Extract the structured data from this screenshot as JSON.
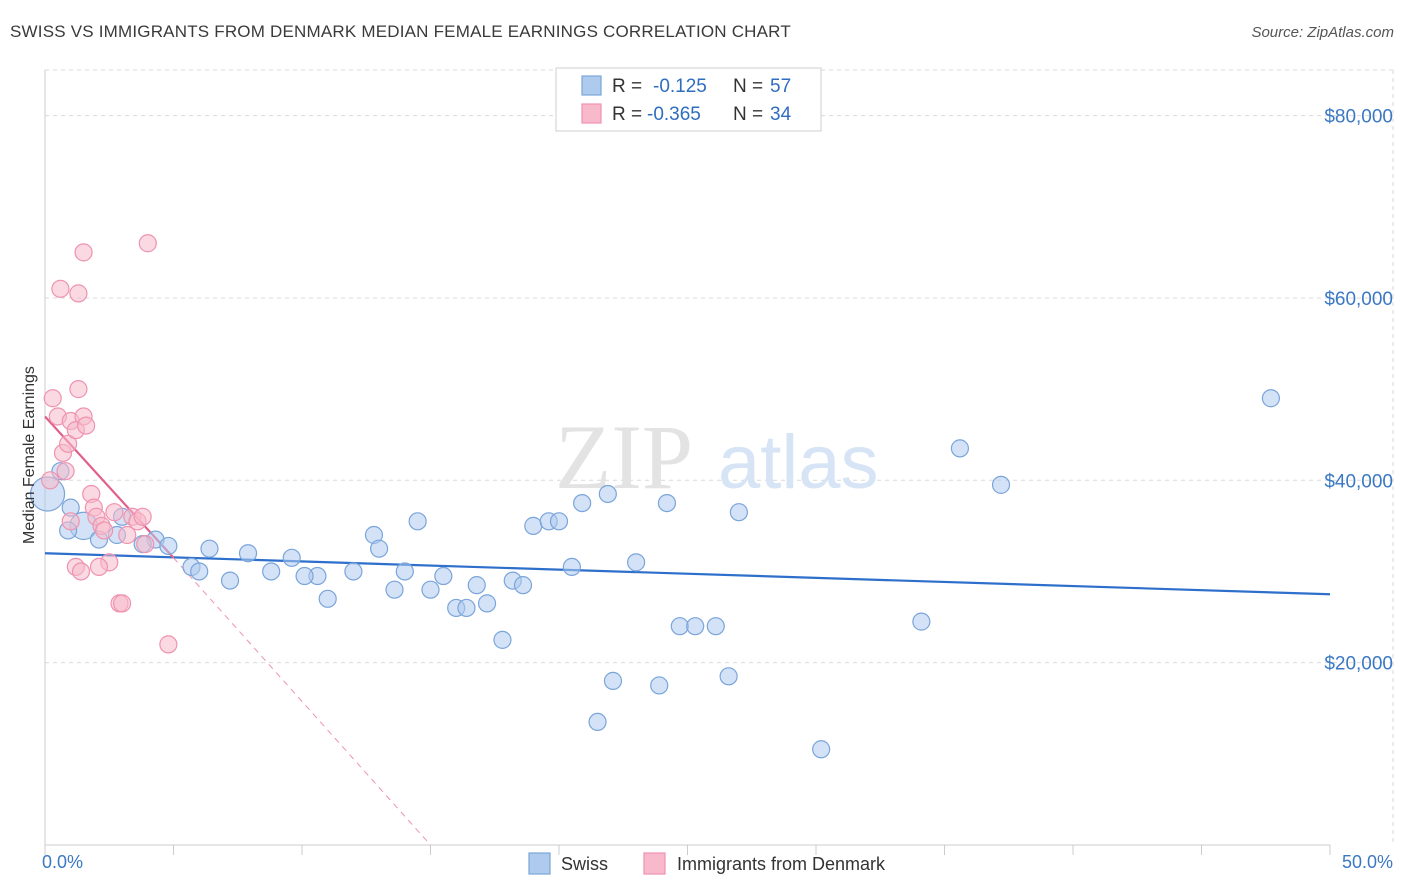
{
  "title": "SWISS VS IMMIGRANTS FROM DENMARK MEDIAN FEMALE EARNINGS CORRELATION CHART",
  "source": "Source: ZipAtlas.com",
  "watermark": {
    "zip": "ZIP",
    "atlas": "atlas"
  },
  "colors": {
    "swiss_fill": "#aecbee",
    "swiss_stroke": "#7aa5da",
    "swiss_line": "#2e6fcc",
    "denmark_fill": "#f7b9cb",
    "denmark_stroke": "#ee93b0",
    "denmark_line": "#e0608c",
    "grid": "#d9d9d9",
    "axis_label": "#3b78c4"
  },
  "legend": {
    "rows": [
      {
        "r_label": "R =",
        "r_value": "-0.125",
        "n_label": "N =",
        "n_value": "57"
      },
      {
        "r_label": "R =",
        "r_value": "-0.365",
        "n_label": "N =",
        "n_value": "34"
      }
    ]
  },
  "chart_data": {
    "type": "scatter",
    "ylabel": "Median Female Earnings",
    "xlim": [
      0,
      50
    ],
    "ylim": [
      0,
      85000
    ],
    "x_tick_labels": [
      "0.0%",
      "50.0%"
    ],
    "y_ticks": [
      {
        "value": 20000,
        "label": "$20,000"
      },
      {
        "value": 40000,
        "label": "$40,000"
      },
      {
        "value": 60000,
        "label": "$60,000"
      },
      {
        "value": 80000,
        "label": "$80,000"
      }
    ],
    "series": [
      {
        "name": "Swiss",
        "r": -0.125,
        "n": 57,
        "trend": {
          "x0": 0,
          "y0": 32000,
          "x1": 50,
          "y1": 27500
        },
        "points": [
          [
            0.1,
            38500,
            1.0
          ],
          [
            1.5,
            35000,
            0.8
          ],
          [
            0.6,
            41000,
            0.5
          ],
          [
            1.0,
            37000,
            0.5
          ],
          [
            2.8,
            34000,
            0.5
          ],
          [
            3.0,
            36000,
            0.5
          ],
          [
            4.3,
            33500,
            0.5
          ],
          [
            4.8,
            32800,
            0.5
          ],
          [
            5.7,
            30500,
            0.5
          ],
          [
            6.4,
            32500,
            0.5
          ],
          [
            6.0,
            30000,
            0.5
          ],
          [
            7.2,
            29000,
            0.5
          ],
          [
            7.9,
            32000,
            0.5
          ],
          [
            8.8,
            30000,
            0.5
          ],
          [
            9.6,
            31500,
            0.5
          ],
          [
            10.6,
            29500,
            0.5
          ],
          [
            10.1,
            29500,
            0.5
          ],
          [
            11.0,
            27000,
            0.5
          ],
          [
            12.0,
            30000,
            0.5
          ],
          [
            12.8,
            34000,
            0.5
          ],
          [
            13.0,
            32500,
            0.5
          ],
          [
            13.6,
            28000,
            0.5
          ],
          [
            14.0,
            30000,
            0.5
          ],
          [
            14.5,
            35500,
            0.5
          ],
          [
            15.0,
            28000,
            0.5
          ],
          [
            15.5,
            29500,
            0.5
          ],
          [
            16.0,
            26000,
            0.5
          ],
          [
            16.4,
            26000,
            0.5
          ],
          [
            16.8,
            28500,
            0.5
          ],
          [
            17.2,
            26500,
            0.5
          ],
          [
            17.8,
            22500,
            0.5
          ],
          [
            18.2,
            29000,
            0.5
          ],
          [
            18.6,
            28500,
            0.5
          ],
          [
            19.0,
            35000,
            0.5
          ],
          [
            19.6,
            35500,
            0.5
          ],
          [
            20.0,
            35500,
            0.5
          ],
          [
            20.5,
            30500,
            0.5
          ],
          [
            20.9,
            37500,
            0.5
          ],
          [
            21.5,
            13500,
            0.5
          ],
          [
            21.9,
            38500,
            0.5
          ],
          [
            22.1,
            18000,
            0.5
          ],
          [
            23.0,
            31000,
            0.5
          ],
          [
            24.2,
            37500,
            0.5
          ],
          [
            23.9,
            17500,
            0.5
          ],
          [
            24.7,
            24000,
            0.5
          ],
          [
            25.3,
            24000,
            0.5
          ],
          [
            26.1,
            24000,
            0.5
          ],
          [
            26.6,
            18500,
            0.5
          ],
          [
            27.0,
            36500,
            0.5
          ],
          [
            30.2,
            10500,
            0.5
          ],
          [
            34.1,
            24500,
            0.5
          ],
          [
            35.6,
            43500,
            0.5
          ],
          [
            37.2,
            39500,
            0.5
          ],
          [
            47.7,
            49000,
            0.5
          ],
          [
            3.8,
            33000,
            0.5
          ],
          [
            2.1,
            33500,
            0.5
          ],
          [
            0.9,
            34500,
            0.5
          ]
        ]
      },
      {
        "name": "Immigrants from Denmark",
        "r": -0.365,
        "n": 34,
        "trend": {
          "x0": 0,
          "y0": 47000,
          "x1": 5.0,
          "y1": 31500
        },
        "trend_ext": {
          "x0": 5.0,
          "y0": 31500,
          "x1": 15.0,
          "y1": 0
        },
        "points": [
          [
            0.3,
            49000,
            0.5
          ],
          [
            0.5,
            47000,
            0.5
          ],
          [
            0.7,
            43000,
            0.5
          ],
          [
            0.8,
            41000,
            0.5
          ],
          [
            0.9,
            44000,
            0.5
          ],
          [
            1.0,
            46500,
            0.5
          ],
          [
            1.2,
            45500,
            0.5
          ],
          [
            1.3,
            50000,
            0.5
          ],
          [
            1.5,
            47000,
            0.5
          ],
          [
            1.6,
            46000,
            0.5
          ],
          [
            1.8,
            38500,
            0.5
          ],
          [
            1.9,
            37000,
            0.5
          ],
          [
            2.0,
            36000,
            0.5
          ],
          [
            2.2,
            35000,
            0.5
          ],
          [
            2.3,
            34500,
            0.5
          ],
          [
            2.5,
            31000,
            0.5
          ],
          [
            2.7,
            36500,
            0.5
          ],
          [
            2.9,
            26500,
            0.5
          ],
          [
            3.0,
            26500,
            0.5
          ],
          [
            3.2,
            34000,
            0.5
          ],
          [
            3.4,
            36000,
            0.5
          ],
          [
            3.6,
            35500,
            0.5
          ],
          [
            3.9,
            33000,
            0.5
          ],
          [
            0.6,
            61000,
            0.5
          ],
          [
            1.3,
            60500,
            0.5
          ],
          [
            1.5,
            65000,
            0.5
          ],
          [
            4.0,
            66000,
            0.5
          ],
          [
            1.0,
            35500,
            0.5
          ],
          [
            1.2,
            30500,
            0.5
          ],
          [
            1.4,
            30000,
            0.5
          ],
          [
            4.8,
            22000,
            0.5
          ],
          [
            3.8,
            36000,
            0.5
          ],
          [
            2.1,
            30500,
            0.5
          ],
          [
            0.2,
            40000,
            0.5
          ]
        ]
      }
    ],
    "legend_items": [
      "Swiss",
      "Immigrants from Denmark"
    ]
  }
}
